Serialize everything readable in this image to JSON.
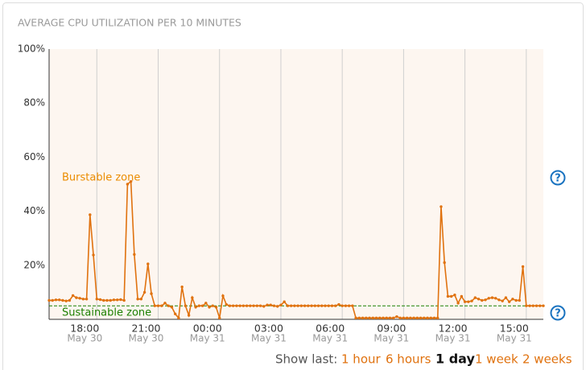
{
  "chart_data": {
    "type": "line",
    "title": "AVERAGE CPU UTILIZATION PER 10 MINUTES",
    "series": [
      {
        "name": "CPU utilization",
        "color": "#e0720f",
        "values": [
          7,
          7,
          7.2,
          7.2,
          7,
          6.8,
          7,
          8.8,
          8,
          7.8,
          7.5,
          7.5,
          38.7,
          23.8,
          7.5,
          7.3,
          7,
          7,
          7,
          7.2,
          7.2,
          7.3,
          7,
          50,
          51,
          24,
          7.5,
          7.5,
          10,
          20.5,
          9.5,
          5,
          5,
          5,
          6,
          5,
          4.5,
          2,
          0.5,
          12,
          5,
          1.5,
          8,
          4.5,
          5,
          5,
          6,
          4.5,
          5,
          4.5,
          0.5,
          8.7,
          5.5,
          5,
          5,
          5,
          5,
          5,
          5,
          5,
          5,
          5,
          5,
          4.8,
          5.3,
          5.3,
          5,
          4.8,
          5.3,
          6.5,
          5,
          5,
          5,
          5,
          5,
          5,
          5,
          5,
          5,
          5,
          5,
          5,
          5,
          5,
          5,
          5.5,
          5,
          5,
          5,
          5,
          0.5,
          0.5,
          0.5,
          0.5,
          0.5,
          0.5,
          0.5,
          0.5,
          0.5,
          0.5,
          0.5,
          0.5,
          1,
          0.5,
          0.5,
          0.5,
          0.5,
          0.5,
          0.5,
          0.5,
          0.5,
          0.5,
          0.5,
          0.5,
          0.5,
          41.7,
          21,
          8.5,
          8.5,
          9,
          6,
          8.5,
          6.5,
          6.5,
          6.8,
          8,
          7.5,
          7,
          7.2,
          7.8,
          8,
          7.8,
          7.2,
          6.8,
          8,
          6.5,
          7.5,
          7,
          7,
          19.5,
          5,
          5,
          5,
          5,
          5,
          5
        ]
      }
    ],
    "xlim": [
      0,
      145
    ],
    "xticks": [
      {
        "value": 14,
        "label": "18:00",
        "date": "May 30"
      },
      {
        "value": 32,
        "label": "21:00",
        "date": "May 30"
      },
      {
        "value": 50,
        "label": "00:00",
        "date": "May 31"
      },
      {
        "value": 68,
        "label": "03:00",
        "date": "May 31"
      },
      {
        "value": 86,
        "label": "06:00",
        "date": "May 31"
      },
      {
        "value": 104,
        "label": "09:00",
        "date": "May 31"
      },
      {
        "value": 122,
        "label": "12:00",
        "date": "May 31"
      },
      {
        "value": 140,
        "label": "15:00",
        "date": "May 31"
      }
    ],
    "ylim": [
      0,
      100
    ],
    "yticks": [
      {
        "value": 20,
        "label": "20%"
      },
      {
        "value": 40,
        "label": "40%"
      },
      {
        "value": 60,
        "label": "60%"
      },
      {
        "value": 80,
        "label": "80%"
      },
      {
        "value": 100,
        "label": "100%"
      }
    ],
    "xgrid": true,
    "sustainable_threshold": 5,
    "zones": {
      "burstable": "Burstable zone",
      "sustainable": "Sustainable zone"
    },
    "help_icon": "?"
  },
  "controls": {
    "label": "Show last:",
    "options": [
      "1 hour",
      "6 hours",
      "1 day",
      "1 week",
      "2 weeks"
    ],
    "selected": 2
  }
}
